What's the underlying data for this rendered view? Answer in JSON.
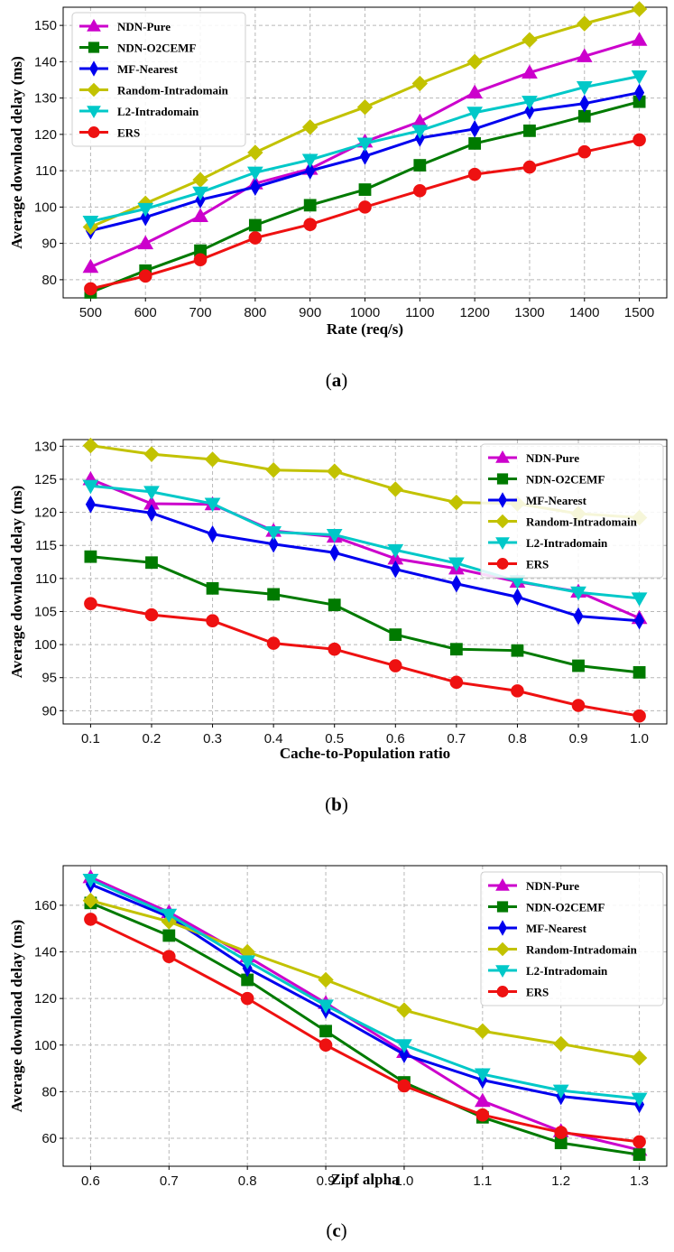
{
  "chart_data": [
    {
      "type": "line",
      "caption": "a",
      "xlabel": "Rate (req/s)",
      "ylabel": "Average download delay (ms)",
      "x": [
        500,
        600,
        700,
        800,
        900,
        1000,
        1100,
        1200,
        1300,
        1400,
        1500
      ],
      "xticks": [
        "500",
        "600",
        "700",
        "800",
        "900",
        "1000",
        "1100",
        "1200",
        "1300",
        "1400",
        "1500"
      ],
      "xlim": [
        450,
        1550
      ],
      "ylim": [
        75,
        155
      ],
      "yticks": [
        80,
        90,
        100,
        110,
        120,
        130,
        140,
        150
      ],
      "grid": true,
      "legend_position": "top-left",
      "series": [
        {
          "name": "NDN-Pure",
          "color": "#cc00cc",
          "marker": "triangle-up",
          "values": [
            83.5,
            90,
            97.5,
            106.5,
            110.5,
            118,
            123.5,
            131.5,
            137,
            141.5,
            146
          ]
        },
        {
          "name": "NDN-O2CEMF",
          "color": "#007a00",
          "marker": "square",
          "values": [
            76.5,
            82.5,
            88,
            95,
            100.5,
            104.8,
            111.5,
            117.5,
            121,
            125,
            129
          ]
        },
        {
          "name": "MF-Nearest",
          "color": "#0000ee",
          "marker": "diamond",
          "values": [
            93.5,
            97.2,
            102,
            105.5,
            110,
            114,
            119,
            121.5,
            126.5,
            128.5,
            131.5
          ]
        },
        {
          "name": "Random-Intradomain",
          "color": "#c2c200",
          "marker": "diamond-wide",
          "values": [
            94.5,
            101,
            107.5,
            115,
            122,
            127.5,
            134,
            140,
            146,
            150.5,
            154.5
          ]
        },
        {
          "name": "L2-Intradomain",
          "color": "#00c8c8",
          "marker": "triangle-down",
          "values": [
            96,
            99.5,
            104,
            109.5,
            113,
            117.5,
            121,
            126,
            129,
            133,
            136
          ]
        },
        {
          "name": "ERS",
          "color": "#ee1111",
          "marker": "circle",
          "values": [
            77.5,
            81,
            85.5,
            91.5,
            95.2,
            100,
            104.5,
            109,
            111,
            115.2,
            118.5
          ]
        }
      ]
    },
    {
      "type": "line",
      "caption": "b",
      "xlabel": "Cache-to-Population ratio",
      "ylabel": "Average download delay (ms)",
      "x": [
        0.1,
        0.2,
        0.3,
        0.4,
        0.5,
        0.6,
        0.7,
        0.8,
        0.9,
        1.0
      ],
      "xticks": [
        "0.1",
        "0.2",
        "0.3",
        "0.4",
        "0.5",
        "0.6",
        "0.7",
        "0.8",
        "0.9",
        "1.0"
      ],
      "xlim": [
        0.055,
        1.045
      ],
      "ylim": [
        88,
        131
      ],
      "yticks": [
        90,
        95,
        100,
        105,
        110,
        115,
        120,
        125,
        130
      ],
      "grid": true,
      "legend_position": "top-right",
      "series": [
        {
          "name": "NDN-Pure",
          "color": "#cc00cc",
          "marker": "triangle-up",
          "values": [
            125,
            121.3,
            121.2,
            117.2,
            116.3,
            113,
            111.5,
            109.5,
            108,
            104
          ]
        },
        {
          "name": "NDN-O2CEMF",
          "color": "#007a00",
          "marker": "square",
          "values": [
            113.3,
            112.4,
            108.5,
            107.6,
            106,
            101.5,
            99.3,
            99.1,
            96.8,
            95.8
          ]
        },
        {
          "name": "MF-Nearest",
          "color": "#0000ee",
          "marker": "diamond",
          "values": [
            121.2,
            119.9,
            116.7,
            115.2,
            113.9,
            111.4,
            109.2,
            107.2,
            104.3,
            103.6
          ]
        },
        {
          "name": "Random-Intradomain",
          "color": "#c2c200",
          "marker": "diamond-wide",
          "values": [
            130.1,
            128.8,
            128,
            126.4,
            126.2,
            123.5,
            121.5,
            121.3,
            119.8,
            119.2
          ]
        },
        {
          "name": "L2-Intradomain",
          "color": "#00c8c8",
          "marker": "triangle-down",
          "values": [
            124,
            123.1,
            121.3,
            117,
            116.6,
            114.3,
            112.3,
            109.6,
            107.9,
            107
          ]
        },
        {
          "name": "ERS",
          "color": "#ee1111",
          "marker": "circle",
          "values": [
            106.2,
            104.5,
            103.6,
            100.2,
            99.3,
            96.8,
            94.3,
            93,
            90.8,
            89.2
          ]
        }
      ]
    },
    {
      "type": "line",
      "caption": "c",
      "xlabel": "Zipf alpha",
      "ylabel": "Average download delay (ms)",
      "x": [
        0.6,
        0.7,
        0.8,
        0.9,
        1.0,
        1.1,
        1.2,
        1.3
      ],
      "xticks": [
        "0.6",
        "0.7",
        "0.8",
        "0.9",
        "1.0",
        "1.1",
        "1.2",
        "1.3"
      ],
      "xlim": [
        0.565,
        1.335
      ],
      "ylim": [
        48,
        177
      ],
      "yticks": [
        60,
        80,
        100,
        120,
        140,
        160
      ],
      "grid": true,
      "legend_position": "top-right",
      "series": [
        {
          "name": "NDN-Pure",
          "color": "#cc00cc",
          "marker": "triangle-up",
          "values": [
            172,
            157,
            138,
            118,
            97,
            76,
            63,
            55
          ]
        },
        {
          "name": "NDN-O2CEMF",
          "color": "#007a00",
          "marker": "square",
          "values": [
            161,
            147,
            128,
            106,
            84,
            69,
            58,
            53
          ]
        },
        {
          "name": "MF-Nearest",
          "color": "#0000ee",
          "marker": "diamond",
          "values": [
            169,
            155,
            133,
            115,
            96,
            85,
            78,
            74.5
          ]
        },
        {
          "name": "Random-Intradomain",
          "color": "#c2c200",
          "marker": "diamond-wide",
          "values": [
            162,
            153,
            140,
            128,
            115,
            106,
            100.5,
            94.5
          ]
        },
        {
          "name": "L2-Intradomain",
          "color": "#00c8c8",
          "marker": "triangle-down",
          "values": [
            171,
            156,
            136,
            117,
            100,
            87.5,
            80.5,
            77
          ]
        },
        {
          "name": "ERS",
          "color": "#ee1111",
          "marker": "circle",
          "values": [
            154,
            138,
            120,
            100,
            82.5,
            70,
            62.5,
            58.5
          ]
        }
      ]
    }
  ]
}
